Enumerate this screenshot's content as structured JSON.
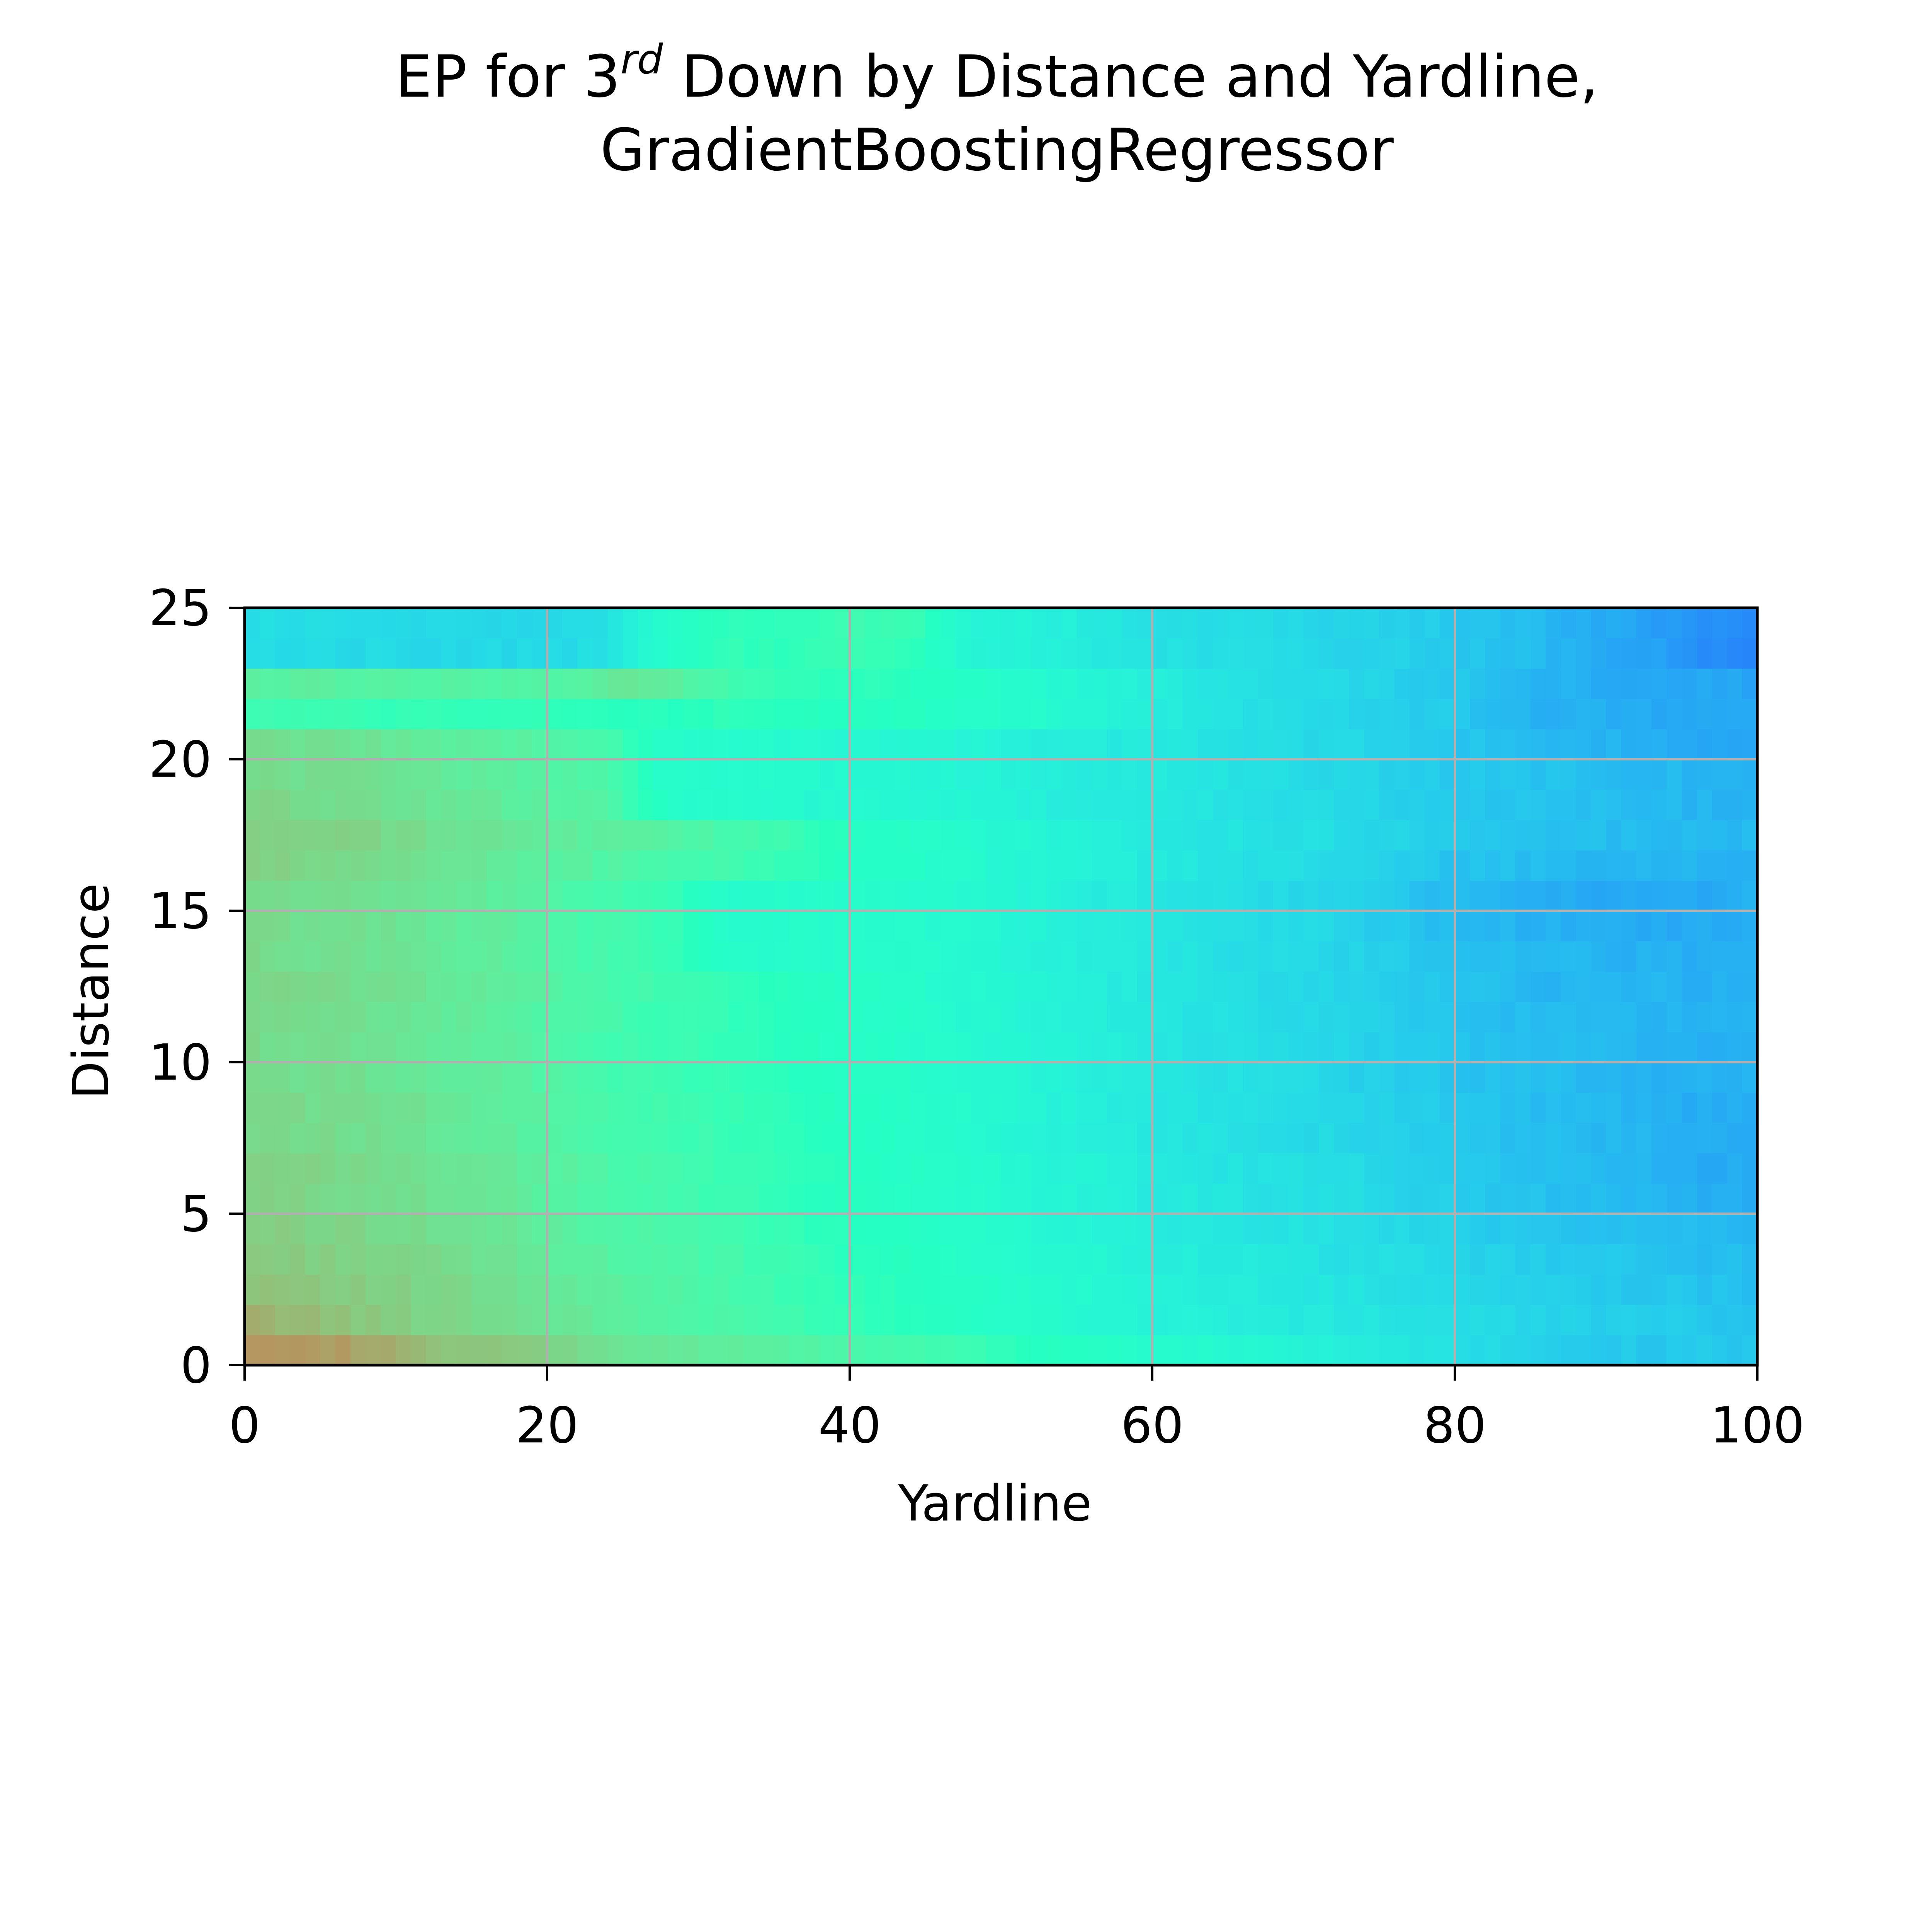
{
  "chart_data": {
    "type": "heatmap",
    "title": {
      "line1_before": "EP for 3",
      "line1_superscript": "rd",
      "line1_after": " Down by Distance and Yardline,",
      "line2": "GradientBoostingRegressor"
    },
    "xlabel": "Yardline",
    "ylabel": "Distance",
    "xlim": [
      0,
      100
    ],
    "ylim": [
      0,
      25
    ],
    "xticks": [
      0,
      20,
      40,
      60,
      80,
      100
    ],
    "xtick_labels": [
      "0",
      "20",
      "40",
      "60",
      "80",
      "100"
    ],
    "yticks": [
      0,
      5,
      10,
      15,
      20,
      25
    ],
    "ytick_labels": [
      "0",
      "5",
      "10",
      "15",
      "20",
      "25"
    ],
    "grid": true,
    "colormap": "rainbow",
    "cell_width": 1,
    "distance_rows": [
      0,
      1,
      2,
      3,
      4,
      5,
      6,
      7,
      8,
      9,
      10,
      11,
      12,
      13,
      14,
      15,
      16,
      17,
      18,
      19,
      20,
      21,
      22,
      23,
      24
    ],
    "yardline_knots": [
      0,
      4,
      8,
      12,
      16,
      20,
      24,
      28,
      32,
      36,
      40,
      44,
      48,
      52,
      56,
      60,
      64,
      68,
      72,
      76,
      80,
      84,
      88,
      92,
      96,
      100
    ],
    "value_range": [
      0.14,
      0.84
    ],
    "ep_grid": [
      [
        0.84,
        0.83,
        0.8,
        0.75,
        0.73,
        0.71,
        0.67,
        0.64,
        0.63,
        0.61,
        0.58,
        0.57,
        0.55,
        0.5,
        0.47,
        0.45,
        0.43,
        0.41,
        0.38,
        0.36,
        0.33,
        0.3,
        0.28,
        0.27,
        0.27,
        0.26
      ],
      [
        0.78,
        0.76,
        0.73,
        0.71,
        0.69,
        0.66,
        0.63,
        0.6,
        0.58,
        0.56,
        0.53,
        0.51,
        0.48,
        0.45,
        0.42,
        0.39,
        0.38,
        0.36,
        0.35,
        0.34,
        0.32,
        0.3,
        0.29,
        0.28,
        0.27,
        0.26
      ],
      [
        0.75,
        0.74,
        0.72,
        0.7,
        0.68,
        0.65,
        0.62,
        0.6,
        0.58,
        0.55,
        0.52,
        0.5,
        0.47,
        0.44,
        0.42,
        0.39,
        0.37,
        0.36,
        0.34,
        0.33,
        0.31,
        0.29,
        0.28,
        0.27,
        0.26,
        0.25
      ],
      [
        0.73,
        0.72,
        0.71,
        0.69,
        0.67,
        0.64,
        0.61,
        0.59,
        0.57,
        0.54,
        0.51,
        0.49,
        0.46,
        0.43,
        0.41,
        0.38,
        0.36,
        0.35,
        0.33,
        0.32,
        0.3,
        0.28,
        0.27,
        0.26,
        0.25,
        0.24
      ],
      [
        0.72,
        0.71,
        0.7,
        0.68,
        0.66,
        0.63,
        0.6,
        0.58,
        0.56,
        0.53,
        0.5,
        0.48,
        0.45,
        0.42,
        0.4,
        0.37,
        0.35,
        0.34,
        0.33,
        0.31,
        0.29,
        0.27,
        0.26,
        0.25,
        0.24,
        0.23
      ],
      [
        0.71,
        0.7,
        0.69,
        0.67,
        0.65,
        0.62,
        0.59,
        0.57,
        0.55,
        0.52,
        0.49,
        0.47,
        0.44,
        0.41,
        0.39,
        0.36,
        0.35,
        0.33,
        0.32,
        0.3,
        0.28,
        0.26,
        0.25,
        0.24,
        0.22,
        0.22
      ],
      [
        0.71,
        0.7,
        0.69,
        0.67,
        0.65,
        0.62,
        0.59,
        0.57,
        0.55,
        0.52,
        0.49,
        0.47,
        0.44,
        0.41,
        0.39,
        0.36,
        0.34,
        0.33,
        0.32,
        0.3,
        0.28,
        0.26,
        0.25,
        0.23,
        0.21,
        0.22
      ],
      [
        0.7,
        0.69,
        0.68,
        0.66,
        0.64,
        0.61,
        0.58,
        0.56,
        0.54,
        0.51,
        0.48,
        0.46,
        0.43,
        0.4,
        0.38,
        0.35,
        0.34,
        0.32,
        0.31,
        0.29,
        0.27,
        0.25,
        0.24,
        0.23,
        0.21,
        0.21
      ],
      [
        0.7,
        0.69,
        0.68,
        0.66,
        0.64,
        0.61,
        0.58,
        0.56,
        0.54,
        0.51,
        0.48,
        0.46,
        0.43,
        0.4,
        0.38,
        0.35,
        0.33,
        0.32,
        0.31,
        0.29,
        0.27,
        0.25,
        0.24,
        0.23,
        0.21,
        0.21
      ],
      [
        0.69,
        0.68,
        0.67,
        0.65,
        0.63,
        0.6,
        0.57,
        0.55,
        0.53,
        0.5,
        0.48,
        0.46,
        0.43,
        0.4,
        0.38,
        0.35,
        0.33,
        0.32,
        0.3,
        0.28,
        0.26,
        0.25,
        0.24,
        0.23,
        0.22,
        0.22
      ],
      [
        0.69,
        0.68,
        0.67,
        0.65,
        0.63,
        0.6,
        0.57,
        0.55,
        0.53,
        0.5,
        0.47,
        0.45,
        0.43,
        0.4,
        0.38,
        0.35,
        0.33,
        0.32,
        0.3,
        0.28,
        0.26,
        0.25,
        0.24,
        0.23,
        0.22,
        0.22
      ],
      [
        0.69,
        0.68,
        0.67,
        0.65,
        0.63,
        0.6,
        0.57,
        0.55,
        0.53,
        0.5,
        0.47,
        0.45,
        0.42,
        0.4,
        0.38,
        0.35,
        0.33,
        0.31,
        0.3,
        0.28,
        0.26,
        0.24,
        0.24,
        0.23,
        0.22,
        0.22
      ],
      [
        0.7,
        0.69,
        0.68,
        0.66,
        0.64,
        0.61,
        0.58,
        0.55,
        0.53,
        0.5,
        0.47,
        0.45,
        0.42,
        0.4,
        0.37,
        0.35,
        0.33,
        0.31,
        0.3,
        0.28,
        0.26,
        0.24,
        0.23,
        0.23,
        0.22,
        0.22
      ],
      [
        0.69,
        0.68,
        0.67,
        0.65,
        0.63,
        0.6,
        0.57,
        0.54,
        0.45,
        0.45,
        0.45,
        0.44,
        0.42,
        0.4,
        0.37,
        0.35,
        0.33,
        0.31,
        0.3,
        0.28,
        0.25,
        0.24,
        0.23,
        0.22,
        0.22,
        0.22
      ],
      [
        0.69,
        0.68,
        0.67,
        0.65,
        0.63,
        0.6,
        0.57,
        0.54,
        0.45,
        0.45,
        0.45,
        0.44,
        0.42,
        0.4,
        0.37,
        0.35,
        0.33,
        0.31,
        0.3,
        0.27,
        0.24,
        0.23,
        0.22,
        0.21,
        0.21,
        0.22
      ],
      [
        0.69,
        0.68,
        0.67,
        0.65,
        0.63,
        0.6,
        0.57,
        0.54,
        0.45,
        0.45,
        0.45,
        0.44,
        0.42,
        0.4,
        0.37,
        0.35,
        0.33,
        0.31,
        0.3,
        0.27,
        0.24,
        0.22,
        0.21,
        0.2,
        0.21,
        0.22
      ],
      [
        0.71,
        0.7,
        0.69,
        0.67,
        0.65,
        0.62,
        0.6,
        0.58,
        0.56,
        0.53,
        0.48,
        0.46,
        0.43,
        0.41,
        0.38,
        0.36,
        0.34,
        0.32,
        0.31,
        0.29,
        0.26,
        0.25,
        0.24,
        0.23,
        0.23,
        0.23
      ],
      [
        0.72,
        0.71,
        0.7,
        0.68,
        0.66,
        0.64,
        0.62,
        0.6,
        0.58,
        0.55,
        0.49,
        0.46,
        0.43,
        0.41,
        0.38,
        0.36,
        0.34,
        0.33,
        0.32,
        0.3,
        0.27,
        0.26,
        0.25,
        0.24,
        0.24,
        0.24
      ],
      [
        0.7,
        0.69,
        0.68,
        0.66,
        0.64,
        0.62,
        0.6,
        0.45,
        0.44,
        0.43,
        0.42,
        0.41,
        0.4,
        0.38,
        0.36,
        0.36,
        0.34,
        0.32,
        0.31,
        0.29,
        0.27,
        0.26,
        0.25,
        0.24,
        0.23,
        0.23
      ],
      [
        0.69,
        0.68,
        0.67,
        0.65,
        0.63,
        0.61,
        0.59,
        0.45,
        0.44,
        0.43,
        0.42,
        0.41,
        0.4,
        0.38,
        0.36,
        0.36,
        0.34,
        0.32,
        0.31,
        0.29,
        0.27,
        0.26,
        0.25,
        0.24,
        0.23,
        0.22
      ],
      [
        0.68,
        0.67,
        0.66,
        0.64,
        0.62,
        0.6,
        0.58,
        0.45,
        0.44,
        0.43,
        0.42,
        0.41,
        0.4,
        0.38,
        0.36,
        0.36,
        0.34,
        0.32,
        0.31,
        0.29,
        0.27,
        0.24,
        0.23,
        0.22,
        0.21,
        0.2
      ],
      [
        0.55,
        0.55,
        0.54,
        0.53,
        0.52,
        0.52,
        0.51,
        0.5,
        0.52,
        0.5,
        0.49,
        0.49,
        0.46,
        0.44,
        0.4,
        0.37,
        0.34,
        0.32,
        0.31,
        0.29,
        0.27,
        0.23,
        0.22,
        0.21,
        0.2,
        0.2
      ],
      [
        0.62,
        0.62,
        0.61,
        0.61,
        0.6,
        0.6,
        0.64,
        0.64,
        0.56,
        0.53,
        0.52,
        0.5,
        0.46,
        0.44,
        0.4,
        0.37,
        0.34,
        0.32,
        0.31,
        0.29,
        0.27,
        0.23,
        0.22,
        0.21,
        0.2,
        0.2
      ],
      [
        0.32,
        0.32,
        0.31,
        0.31,
        0.31,
        0.3,
        0.33,
        0.45,
        0.53,
        0.51,
        0.55,
        0.52,
        0.4,
        0.39,
        0.36,
        0.33,
        0.32,
        0.31,
        0.3,
        0.29,
        0.27,
        0.25,
        0.22,
        0.2,
        0.17,
        0.14
      ],
      [
        0.32,
        0.32,
        0.31,
        0.31,
        0.31,
        0.3,
        0.33,
        0.45,
        0.53,
        0.51,
        0.55,
        0.55,
        0.4,
        0.39,
        0.36,
        0.33,
        0.32,
        0.31,
        0.3,
        0.29,
        0.27,
        0.25,
        0.22,
        0.2,
        0.17,
        0.14
      ]
    ]
  }
}
